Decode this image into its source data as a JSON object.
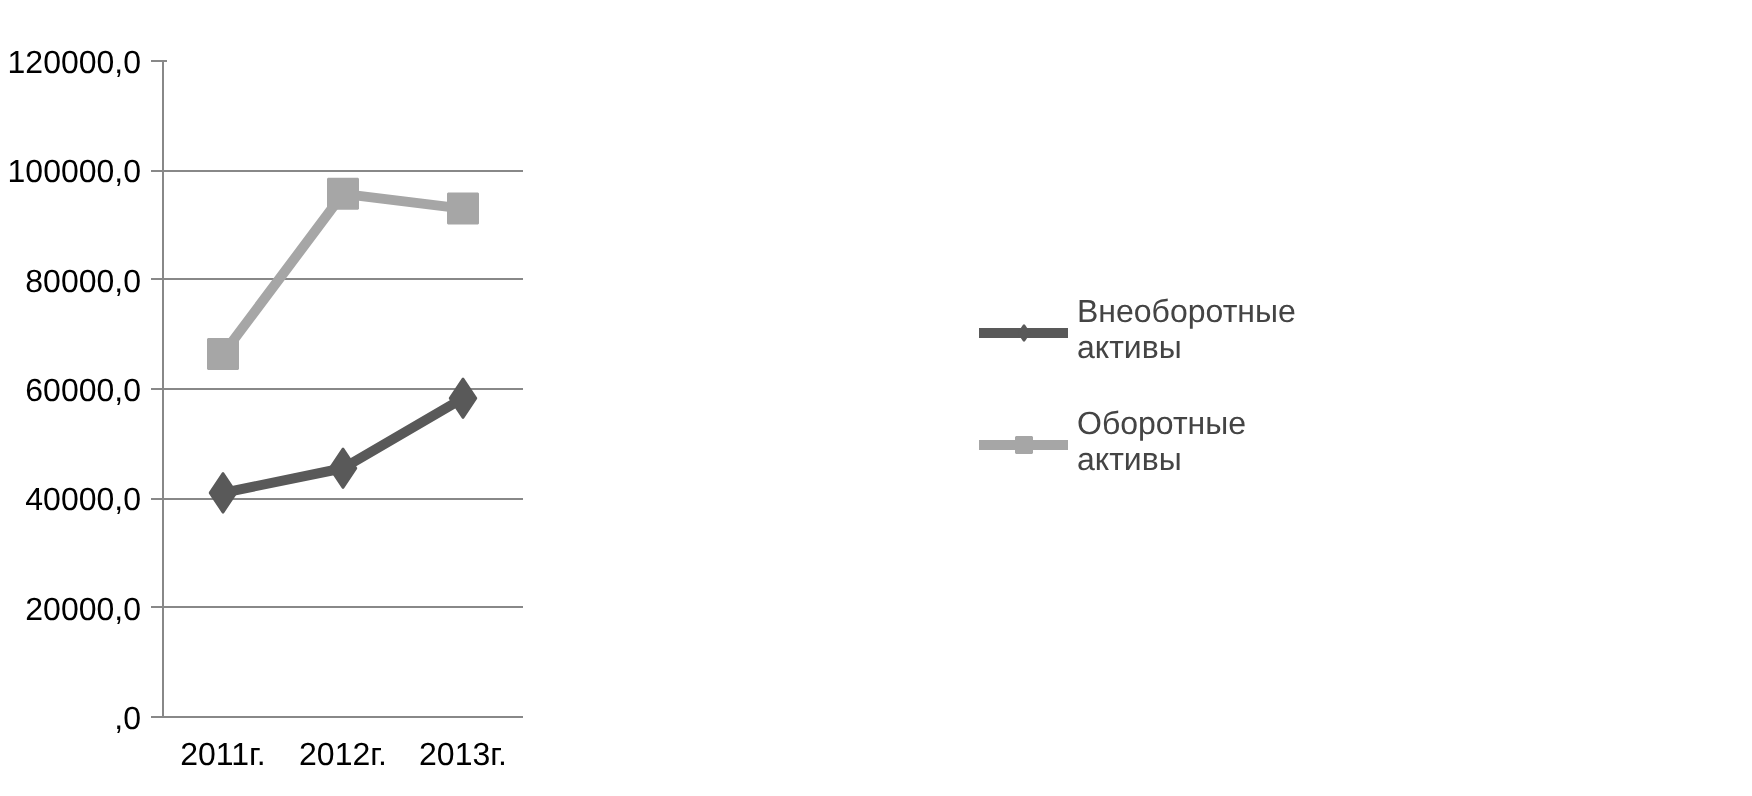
{
  "chart_data": {
    "type": "line",
    "categories": [
      "2011г.",
      "2012г.",
      "2013г."
    ],
    "series": [
      {
        "name": "Внеоборотные активы",
        "color": "#595959",
        "marker": "diamond",
        "values": [
          41000,
          45500,
          58300
        ]
      },
      {
        "name": "Оборотные активы",
        "color": "#a6a6a6",
        "marker": "square",
        "values": [
          66400,
          95700,
          93000
        ]
      }
    ],
    "ylim": [
      0,
      120000
    ],
    "yticks": [
      {
        "value": 0,
        "label": ",0"
      },
      {
        "value": 20000,
        "label": "20000,0"
      },
      {
        "value": 40000,
        "label": "40000,0"
      },
      {
        "value": 60000,
        "label": "60000,0"
      },
      {
        "value": 80000,
        "label": "80000,0"
      },
      {
        "value": 100000,
        "label": "100000,0"
      },
      {
        "value": 120000,
        "label": "120000,0"
      }
    ],
    "grid": "y",
    "legend": "right",
    "line_style": "solid"
  }
}
